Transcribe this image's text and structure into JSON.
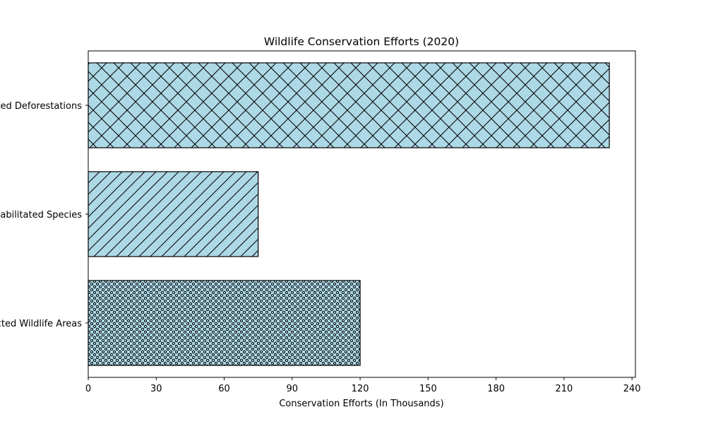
{
  "chart_data": {
    "type": "bar",
    "orientation": "horizontal",
    "title": "Wildlife Conservation Efforts (2020)",
    "xlabel": "Conservation Efforts (In Thousands)",
    "ylabel": "",
    "categories": [
      "Protected Wildlife Areas",
      "Rehabilitated Species",
      "Prevented Deforestations"
    ],
    "values": [
      120,
      75,
      230
    ],
    "bar_patterns": [
      "dots",
      "diagonal",
      "crosshatch"
    ],
    "xlim": [
      0,
      241.5
    ],
    "xticks": [
      0,
      30,
      60,
      90,
      120,
      150,
      180,
      210,
      240
    ],
    "bar_color": "#add8e6",
    "edge_color": "#000000",
    "grid": false,
    "legend": "none"
  }
}
